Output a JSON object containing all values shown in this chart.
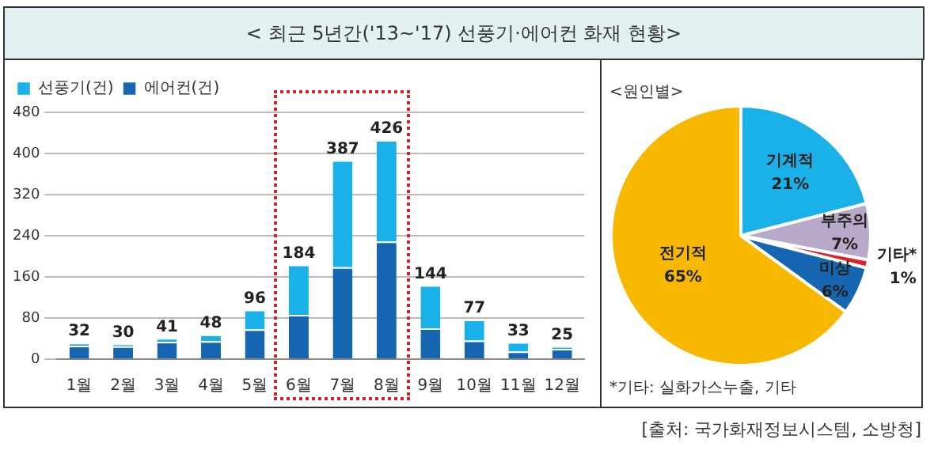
{
  "chart_data": [
    {
      "type": "bar",
      "title": "< 최근 5년간('13~'17) 선풍기·에어컨 화재 현황>",
      "categories": [
        "1월",
        "2월",
        "3월",
        "4월",
        "5월",
        "6월",
        "7월",
        "8월",
        "9월",
        "10월",
        "11월",
        "12월"
      ],
      "stacked": true,
      "series": [
        {
          "name": "에어컨(건)",
          "color": "#1565b0",
          "values": [
            26,
            25,
            34,
            35,
            58,
            86,
            179,
            229,
            60,
            36,
            15,
            20
          ]
        },
        {
          "name": "선풍기(건)",
          "color": "#1ab0e8",
          "values": [
            6,
            5,
            7,
            13,
            38,
            98,
            208,
            197,
            84,
            41,
            18,
            5
          ]
        }
      ],
      "totals": [
        "32",
        "30",
        "41",
        "48",
        "96",
        "184",
        "387",
        "426",
        "144",
        "77",
        "33",
        "25"
      ],
      "ylim": [
        0,
        480
      ],
      "yticks": [
        0,
        80,
        160,
        240,
        320,
        400,
        480
      ],
      "grid": "y",
      "legend": "top left"
    },
    {
      "type": "pie",
      "subtitle": "<원인별>",
      "categories": [
        "기계적",
        "부주의",
        "기타*",
        "미상",
        "전기적"
      ],
      "values": [
        21,
        7,
        1,
        6,
        65
      ],
      "colors": [
        "#1ab0e8",
        "#b8a9c9",
        "#e0202a",
        "#1565b0",
        "#f9b800"
      ],
      "value_labels": [
        "21%",
        "7%",
        "1%",
        "6%",
        "65%"
      ],
      "annotations": [
        "*기타: 실화가스누출, 기타",
        "[출처: 국가화재정보시스템, 소방청]"
      ]
    }
  ]
}
